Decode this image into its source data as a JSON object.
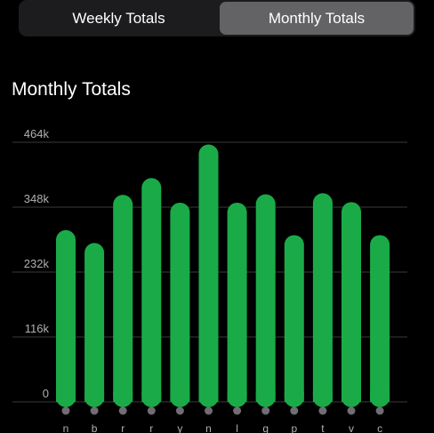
{
  "segmented_control": {
    "options": [
      "Weekly Totals",
      "Monthly Totals"
    ],
    "selected": "Monthly Totals"
  },
  "section": {
    "title": "Monthly Totals"
  },
  "colors": {
    "bar": "#1aab48",
    "gridline": "#3a3a3c",
    "dot": "#6e6e73",
    "segment_active": "#636366",
    "segment_track": "#1c1c1e"
  },
  "chart_data": {
    "type": "bar",
    "title": "",
    "xlabel": "",
    "ylabel": "",
    "ylim": [
      0,
      464000
    ],
    "yticks": [
      0,
      116000,
      232000,
      348000,
      464000
    ],
    "ytick_labels": [
      "0",
      "116k",
      "232k",
      "348k",
      "464k"
    ],
    "grid": true,
    "categories": [
      "Jan",
      "Feb",
      "Mar",
      "Apr",
      "May",
      "Jun",
      "Jul",
      "Aug",
      "Sep",
      "Oct",
      "Nov",
      "Dec"
    ],
    "category_tick_labels": [
      "n",
      "b",
      "r",
      "r",
      "y",
      "n",
      "l",
      "g",
      "p",
      "t",
      "v",
      "c"
    ],
    "values": [
      307000,
      284000,
      370000,
      400000,
      356000,
      460000,
      356000,
      371000,
      298000,
      373000,
      357000,
      298000
    ]
  }
}
